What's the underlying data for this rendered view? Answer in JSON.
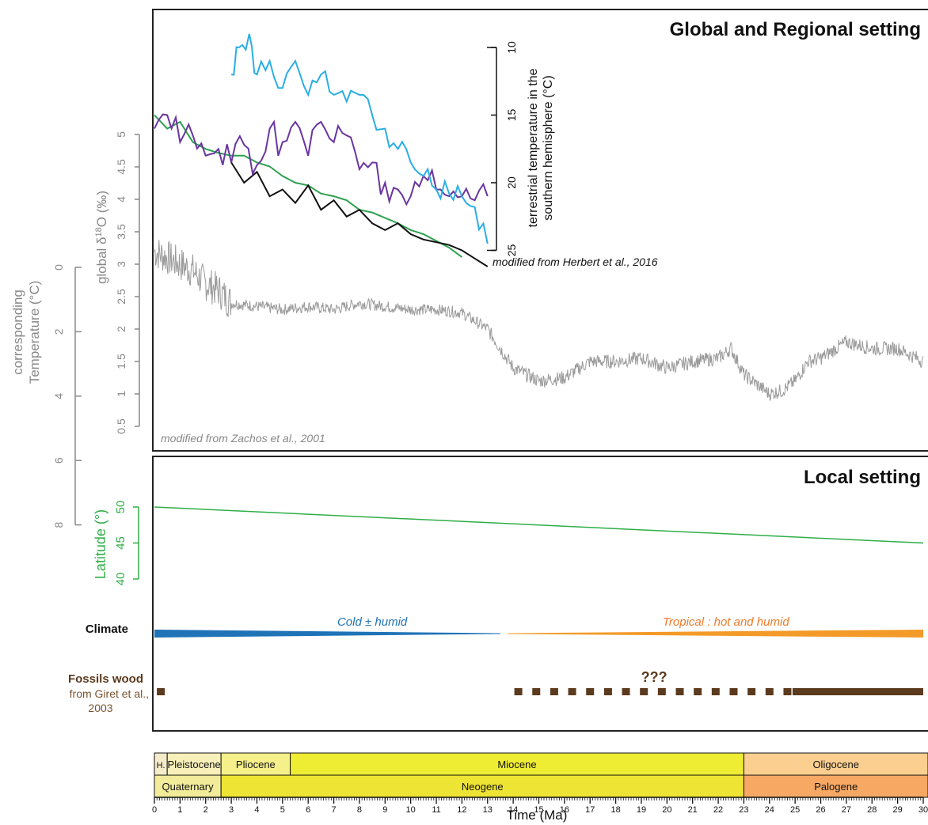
{
  "panels": {
    "global_title": "Global and Regional setting",
    "local_title": "Local setting"
  },
  "chart_data": [
    {
      "type": "line",
      "panel": "global",
      "title": "Global and Regional setting",
      "xlabel": "Time (Ma)",
      "xlim": [
        0,
        30
      ],
      "y_axes": [
        {
          "label": "global δ18O (‰)",
          "label_parts": [
            "global δ",
            "18",
            "O (‰)"
          ],
          "ticks": [
            "5",
            "4.5",
            "4",
            "3.5",
            "3",
            "2.5",
            "2",
            "1.5",
            "1",
            "0.5"
          ],
          "tick_values": [
            5,
            4.5,
            4,
            3.5,
            3,
            2.5,
            2,
            1.5,
            1,
            0.5
          ]
        },
        {
          "label": "corresponding Temperature (°C)",
          "label_lines": [
            "corresponding",
            "Temperature (°C)"
          ],
          "ticks": [
            "0",
            "2",
            "4",
            "6",
            "8"
          ],
          "tick_values": [
            0,
            2,
            4,
            6,
            8
          ]
        },
        {
          "label": "terrestrial temperature in the southern hemisphere (°C)",
          "label_lines": [
            "terrestrial temperature in the",
            "southern hemisphere (°C)"
          ],
          "ticks": [
            "10",
            "15",
            "20",
            "25"
          ],
          "tick_values": [
            10,
            15,
            20,
            25
          ]
        }
      ],
      "series": [
        {
          "axis": "d18O",
          "color": "#9a9a9a",
          "x": [
            0,
            0.5,
            1,
            1.5,
            2,
            2.5,
            3,
            4,
            5,
            6,
            7,
            8,
            9,
            10,
            11,
            12,
            13,
            13.5,
            14,
            15,
            16,
            17,
            18,
            19,
            20,
            21,
            22,
            22.5,
            23,
            23.5,
            24,
            24.5,
            25,
            25.5,
            26,
            27,
            28,
            29,
            30
          ],
          "y": [
            3.2,
            3.1,
            3.0,
            2.9,
            2.7,
            2.6,
            2.4,
            2.35,
            2.3,
            2.35,
            2.3,
            2.4,
            2.35,
            2.3,
            2.3,
            2.25,
            2.0,
            1.7,
            1.4,
            1.2,
            1.25,
            1.5,
            1.5,
            1.55,
            1.4,
            1.5,
            1.55,
            1.7,
            1.3,
            1.15,
            1.0,
            1.05,
            1.2,
            1.5,
            1.55,
            1.8,
            1.7,
            1.7,
            1.5
          ]
        },
        {
          "axis": "terrestrial",
          "color": "#2fa04f",
          "x": [
            0,
            0.5,
            1,
            1.5,
            2,
            2.5,
            3,
            3.5,
            4,
            4.5,
            5,
            5.5,
            6,
            6.5,
            7,
            7.5,
            8,
            8.5,
            9,
            9.5,
            10,
            10.5,
            11,
            11.5,
            12
          ],
          "y": [
            15,
            16,
            15.5,
            17,
            17.5,
            17.8,
            18,
            18,
            18.5,
            18.8,
            19.5,
            20,
            20.2,
            20.8,
            21,
            21.3,
            22,
            22.2,
            22.6,
            23,
            23.5,
            23.8,
            24.3,
            24.8,
            25.5
          ]
        },
        {
          "axis": "terrestrial",
          "color": "#111111",
          "x": [
            3,
            3.5,
            4,
            4.5,
            5,
            5.5,
            6,
            6.5,
            7,
            7.5,
            8,
            8.5,
            9,
            9.5,
            10,
            10.5,
            11,
            11.5,
            12,
            12.5,
            13
          ],
          "y": [
            18.5,
            20,
            19.2,
            21,
            20.5,
            21.5,
            20.2,
            22,
            21.3,
            22.5,
            22,
            23,
            23.5,
            23,
            23.8,
            24.2,
            24.4,
            24.6,
            25,
            25.6,
            26.2
          ]
        },
        {
          "axis": "terrestrial",
          "color": "#6a35a0",
          "x": [
            0,
            0.5,
            1,
            1.5,
            2,
            2.5,
            3,
            3.5,
            4,
            4.5,
            5,
            5.5,
            6,
            6.5,
            7,
            7.5,
            8,
            8.5,
            9,
            9.5,
            10,
            10.5,
            11,
            11.5,
            12,
            12.5,
            13
          ],
          "y": [
            16,
            15,
            17,
            16.5,
            18,
            17.5,
            18.5,
            17.2,
            18.7,
            16,
            17,
            15.5,
            18,
            15.5,
            17,
            16.5,
            19,
            18.5,
            20,
            20.5,
            21,
            19.5,
            20.5,
            21,
            21,
            21.3,
            21
          ]
        },
        {
          "axis": "terrestrial",
          "color": "#2aaee4",
          "x": [
            3,
            3.3,
            3.7,
            4,
            4.5,
            5,
            5.5,
            6,
            6.5,
            7,
            7.5,
            8,
            8.5,
            9,
            9.5,
            10,
            10.5,
            11,
            11.5,
            12,
            12.5,
            13
          ],
          "y": [
            12,
            10,
            9,
            12,
            11,
            13,
            11,
            13.5,
            12,
            13.5,
            14,
            13.5,
            15,
            16,
            17.5,
            18.5,
            19.5,
            20.5,
            20.8,
            21,
            21.8,
            24.5
          ]
        }
      ],
      "annotations": [
        "modified from Herbert et al., 2016",
        "modified from Zachos et al., 2001"
      ]
    },
    {
      "type": "line",
      "panel": "local",
      "title": "Local setting",
      "xlabel": "Time (Ma)",
      "xlim": [
        0,
        30
      ],
      "y_axes": [
        {
          "label": "Latitude (°)",
          "ticks": [
            "50",
            "45",
            "40"
          ],
          "tick_values": [
            50,
            45,
            40
          ]
        }
      ],
      "series": [
        {
          "name": "Latitude",
          "color": "#2fae47",
          "x": [
            0,
            30
          ],
          "y": [
            50,
            45
          ]
        }
      ],
      "climate": {
        "label": "Climate",
        "bands": [
          {
            "label": "Cold ± humid",
            "color": "#1f73b7",
            "x_start": 0,
            "x_end": 13.5
          },
          {
            "label": "Tropical : hot and humid",
            "color": "#f39a28",
            "x_start": 13.8,
            "x_end": 30
          }
        ]
      },
      "fossils": {
        "label": "Fossils wood",
        "source": "from Giret et al., 2003",
        "uncertain_label": "???",
        "color": "#5b3a1e",
        "dots": [
          0.25,
          14.2,
          14.9,
          15.6,
          16.3,
          17.0,
          17.7,
          18.4,
          19.1,
          19.8,
          20.5,
          21.2,
          21.9,
          22.6,
          23.3,
          24.0,
          24.7
        ],
        "solid_range": [
          24.9,
          30
        ]
      },
      "timescale": {
        "epochs": [
          {
            "label": "H.",
            "start": 0,
            "end": 0.5,
            "color": "#f5ecc9"
          },
          {
            "label": "Pleistocene",
            "start": 0.5,
            "end": 2.6,
            "color": "#f7f0b8"
          },
          {
            "label": "Pliocene",
            "start": 2.6,
            "end": 5.3,
            "color": "#f5f08a"
          },
          {
            "label": "Miocene",
            "start": 5.3,
            "end": 23,
            "color": "#eeec33"
          },
          {
            "label": "Oligocene",
            "start": 23,
            "end": 33,
            "color": "#fbcf90"
          }
        ],
        "periods": [
          {
            "label": "Quaternary",
            "start": 0,
            "end": 2.6,
            "color": "#f2ec9a"
          },
          {
            "label": "Neogene",
            "start": 2.6,
            "end": 23,
            "color": "#eee433"
          },
          {
            "label": "Palogene",
            "start": 23,
            "end": 33,
            "color": "#f7a964"
          }
        ],
        "ticks": [
          "0",
          "1",
          "2",
          "3",
          "4",
          "5",
          "6",
          "7",
          "8",
          "9",
          "10",
          "11",
          "12",
          "13",
          "14",
          "15",
          "16",
          "17",
          "18",
          "19",
          "20",
          "21",
          "22",
          "23",
          "24",
          "25",
          "26",
          "27",
          "28",
          "29",
          "30"
        ]
      }
    }
  ]
}
